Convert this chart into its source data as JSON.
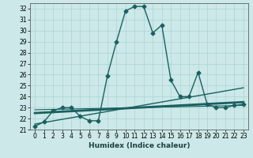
{
  "title": "",
  "xlabel": "Humidex (Indice chaleur)",
  "ylabel": "",
  "bg_color": "#cce8e8",
  "grid_color": "#aad4d4",
  "line_color": "#1a6060",
  "xlim": [
    -0.5,
    23.5
  ],
  "ylim": [
    21,
    32.5
  ],
  "xticks": [
    0,
    1,
    2,
    3,
    4,
    5,
    6,
    7,
    8,
    9,
    10,
    11,
    12,
    13,
    14,
    15,
    16,
    17,
    18,
    19,
    20,
    21,
    22,
    23
  ],
  "yticks": [
    21,
    22,
    23,
    24,
    25,
    26,
    27,
    28,
    29,
    30,
    31,
    32
  ],
  "series": [
    {
      "x": [
        0,
        1,
        2,
        3,
        4,
        5,
        6,
        7,
        8,
        9,
        10,
        11,
        12,
        13,
        14,
        15,
        16,
        17,
        18,
        19,
        20,
        21,
        22,
        23
      ],
      "y": [
        21.3,
        21.7,
        22.7,
        23.0,
        23.0,
        22.2,
        21.8,
        21.8,
        25.9,
        29.0,
        31.8,
        32.2,
        32.2,
        29.8,
        30.5,
        25.5,
        24.0,
        24.0,
        26.2,
        23.3,
        23.0,
        23.0,
        23.2,
        23.3
      ],
      "marker": true,
      "linewidth": 1.0,
      "markersize": 2.5
    },
    {
      "x": [
        0,
        23
      ],
      "y": [
        21.5,
        24.8
      ],
      "marker": false,
      "linewidth": 1.0,
      "markersize": 0
    },
    {
      "x": [
        0,
        23
      ],
      "y": [
        22.5,
        23.5
      ],
      "marker": false,
      "linewidth": 2.0,
      "markersize": 0
    },
    {
      "x": [
        0,
        23
      ],
      "y": [
        22.8,
        23.2
      ],
      "marker": false,
      "linewidth": 0.8,
      "markersize": 0
    }
  ],
  "tick_fontsize": 5.5,
  "xlabel_fontsize": 6.5,
  "figsize": [
    3.2,
    2.0
  ],
  "dpi": 100
}
